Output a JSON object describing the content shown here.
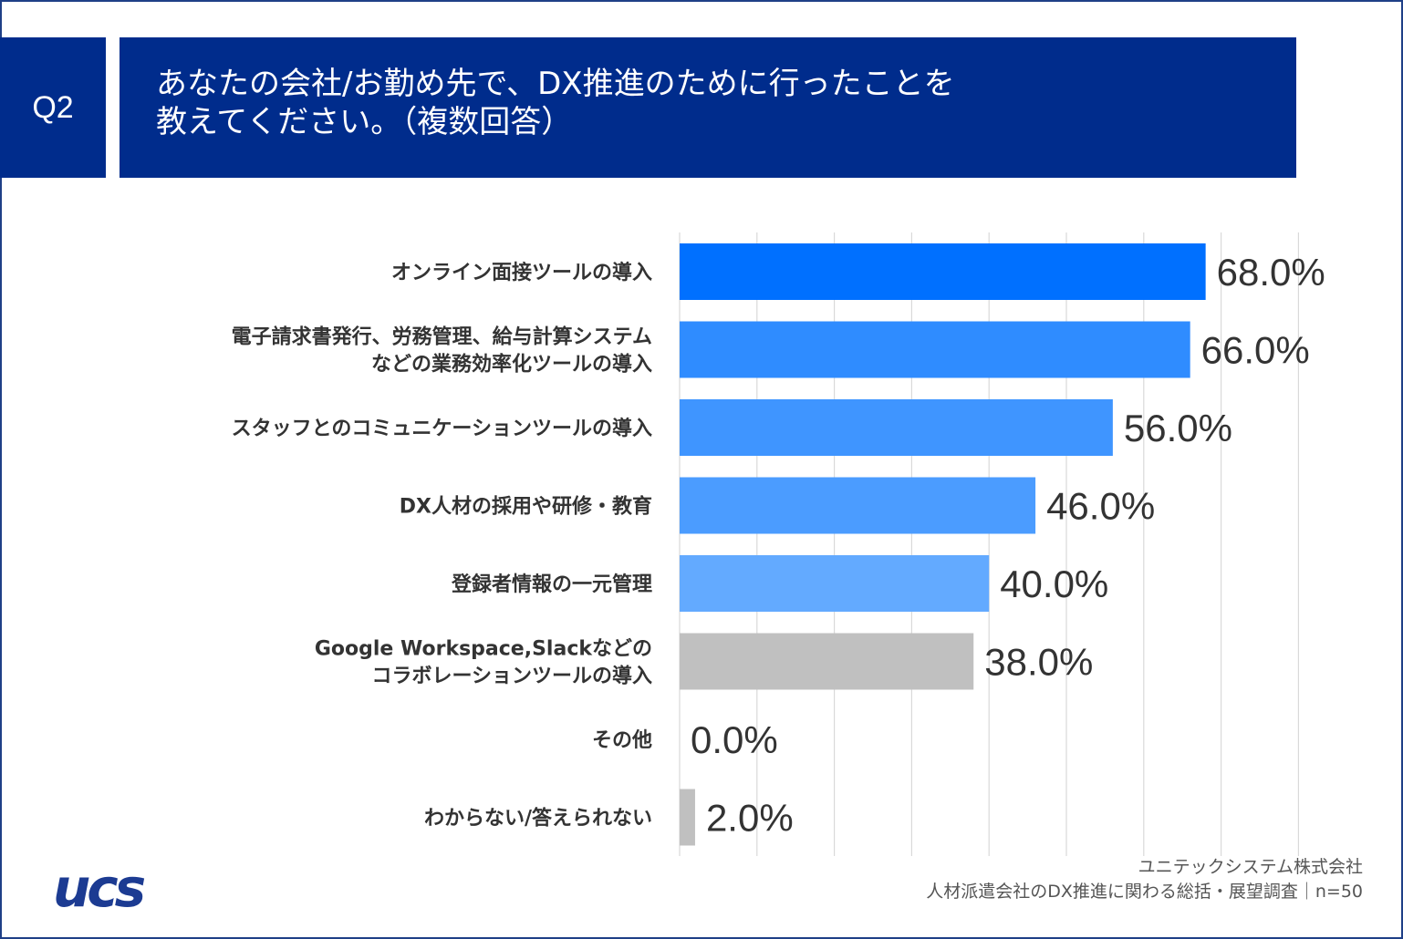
{
  "header": {
    "badge": "Q2",
    "title_line1": "あなたの会社/お勤め先で、DX推進のために行ったことを",
    "title_line2": "教えてください。（複数回答）"
  },
  "chart_data": {
    "type": "bar",
    "orientation": "horizontal",
    "categories": [
      [
        "オンライン面接ツールの導入"
      ],
      [
        "電子請求書発行、労務管理、給与計算システム",
        "などの業務効率化ツールの導入"
      ],
      [
        "スタッフとのコミュニケーションツールの導入"
      ],
      [
        "DX人材の採用や研修・教育"
      ],
      [
        "登録者情報の一元管理"
      ],
      [
        "Google Workspace,Slackなどの",
        "コラボレーションツールの導入"
      ],
      [
        "その他"
      ],
      [
        "わからない/答えられない"
      ]
    ],
    "values": [
      68.0,
      66.0,
      56.0,
      46.0,
      40.0,
      38.0,
      0.0,
      2.0
    ],
    "value_labels": [
      "68.0%",
      "66.0%",
      "56.0%",
      "46.0%",
      "40.0%",
      "38.0%",
      "0.0%",
      "2.0%"
    ],
    "bar_colors": [
      "#0070ff",
      "#2f8cff",
      "#3f95ff",
      "#4b9cff",
      "#63aaff",
      "#c0c0c0",
      "#c0c0c0",
      "#c0c0c0"
    ],
    "xlim": [
      0,
      80
    ],
    "grid": true,
    "legend": "none"
  },
  "footer": {
    "company": "ユニテックシステム株式会社",
    "survey": "人材派遣会社のDX推進に関わる総括・展望調査｜n=50",
    "logo_text": "ucs"
  },
  "colors": {
    "header_bg": "#002c8c",
    "grid": "#d9d9d9",
    "text": "#333333"
  }
}
